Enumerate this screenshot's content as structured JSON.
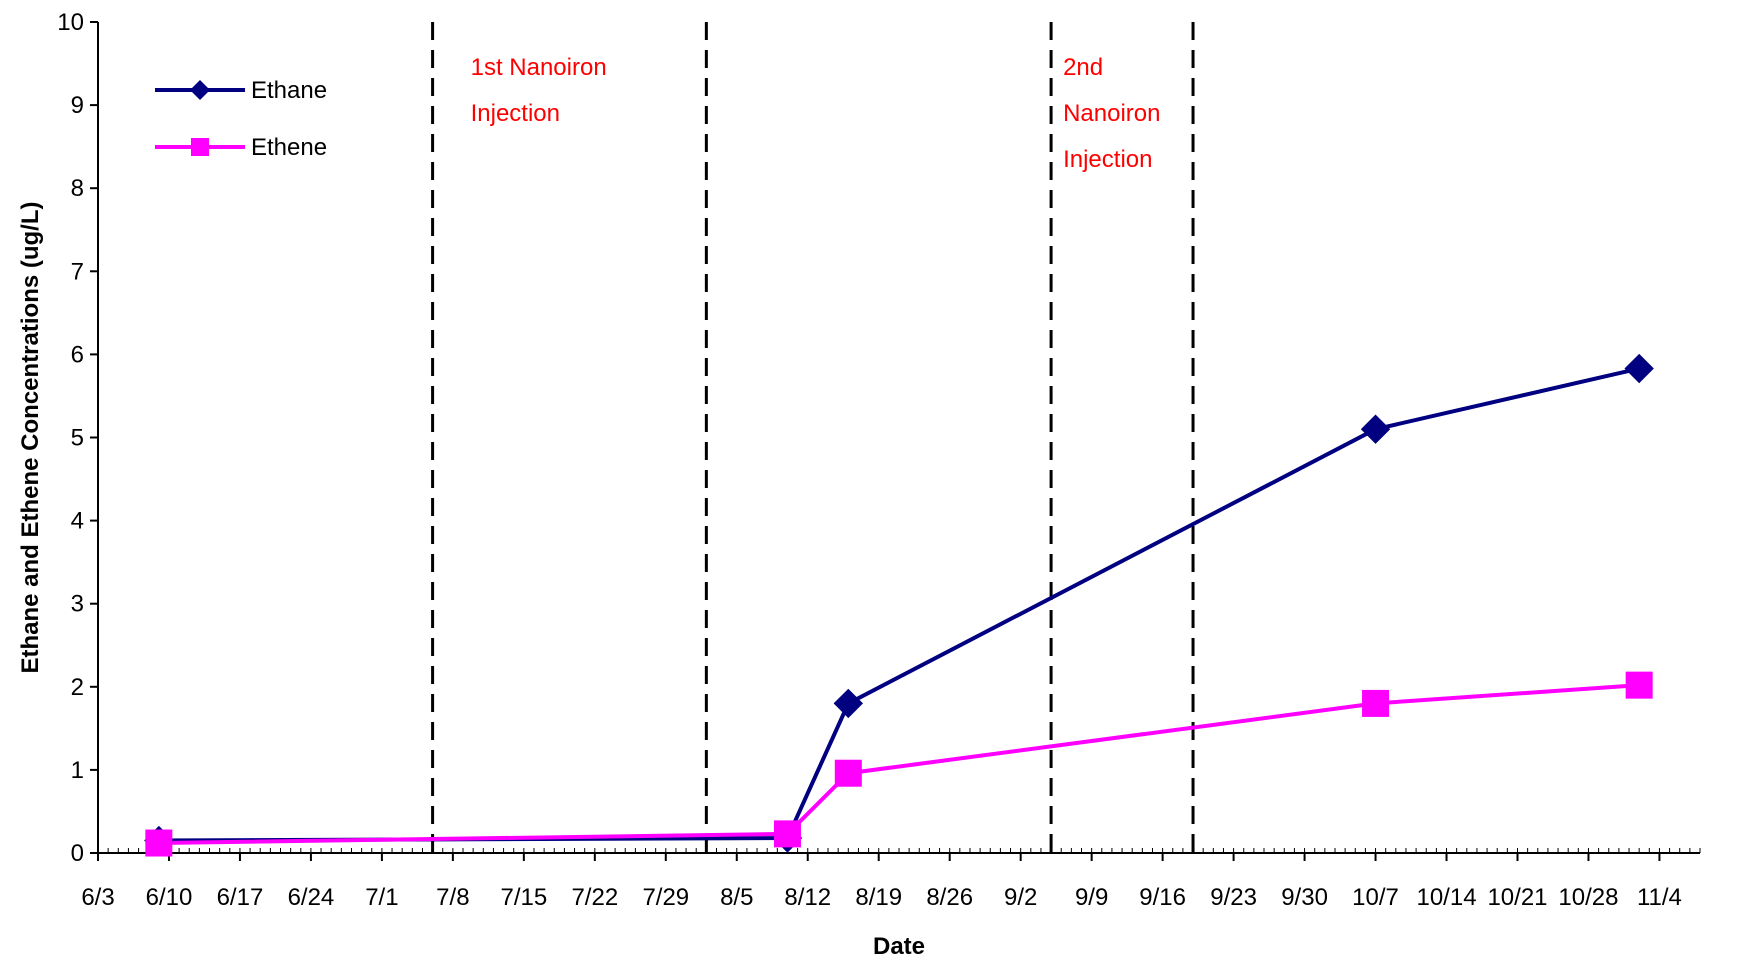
{
  "chart_data": {
    "type": "line",
    "title": "",
    "xlabel": "Date",
    "ylabel": "Ethane and Ethene Concentrations (ug/L)",
    "ylim": [
      0,
      10
    ],
    "xlim": [
      "6/3",
      "11/8"
    ],
    "yticks": [
      "0",
      "1",
      "2",
      "3",
      "4",
      "5",
      "6",
      "7",
      "8",
      "9",
      "10"
    ],
    "xticks": [
      "6/3",
      "6/10",
      "6/17",
      "6/24",
      "7/1",
      "7/8",
      "7/15",
      "7/22",
      "7/29",
      "8/5",
      "8/12",
      "8/19",
      "8/26",
      "9/2",
      "9/9",
      "9/16",
      "9/23",
      "9/30",
      "10/7",
      "10/14",
      "10/21",
      "10/28",
      "11/4"
    ],
    "grid": false,
    "legend_position": "top-left",
    "series": [
      {
        "name": "Ethane",
        "color": "#000080",
        "marker": "diamond",
        "points": [
          {
            "x": "6/9",
            "y": 0.15
          },
          {
            "x": "8/10",
            "y": 0.18
          },
          {
            "x": "8/16",
            "y": 1.8
          },
          {
            "x": "10/7",
            "y": 5.1
          },
          {
            "x": "11/2",
            "y": 5.83
          }
        ]
      },
      {
        "name": "Ethene",
        "color": "#FF00FF",
        "marker": "square",
        "points": [
          {
            "x": "6/9",
            "y": 0.12
          },
          {
            "x": "8/10",
            "y": 0.23
          },
          {
            "x": "8/16",
            "y": 0.96
          },
          {
            "x": "10/7",
            "y": 1.8
          },
          {
            "x": "11/2",
            "y": 2.02
          }
        ]
      }
    ],
    "vertical_lines": [
      {
        "x": "7/6"
      },
      {
        "x": "8/2"
      },
      {
        "x": "9/5"
      },
      {
        "x": "9/19"
      }
    ],
    "annotations": [
      {
        "lines": [
          "1st Nanoiron",
          "Injection"
        ],
        "color": "#FF0000"
      },
      {
        "lines": [
          "2nd",
          "Nanoiron",
          "Injection"
        ],
        "color": "#FF0000"
      }
    ]
  }
}
